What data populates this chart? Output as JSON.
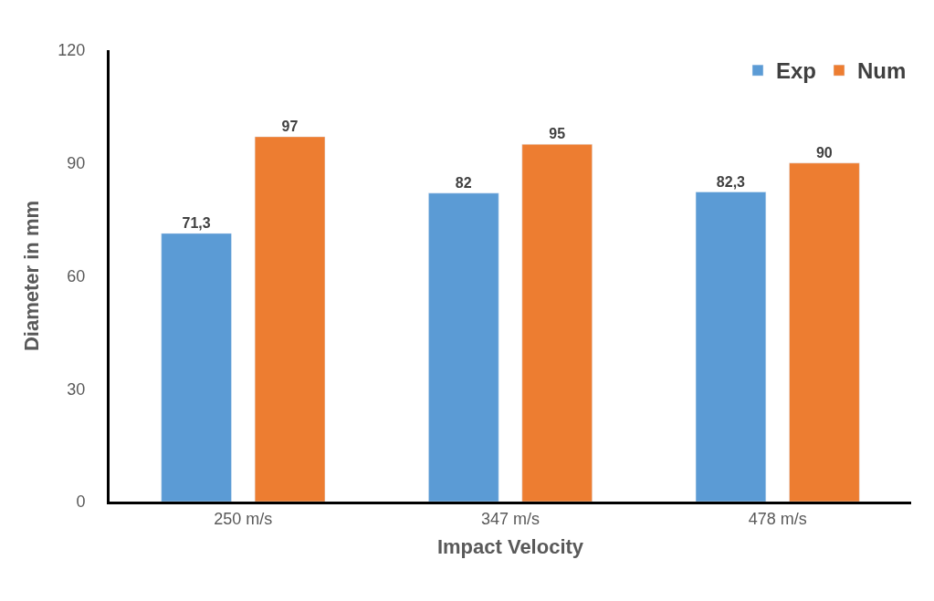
{
  "chart_data": {
    "type": "bar",
    "xlabel": "Impact Velocity",
    "ylabel": "Diameter in mm",
    "categories": [
      "250 m/s",
      "347 m/s",
      "478 m/s"
    ],
    "series": [
      {
        "name": "Exp",
        "color": "#5b9bd5",
        "values": [
          71.3,
          82,
          82.3
        ],
        "value_labels": [
          "71,3",
          "82",
          "82,3"
        ]
      },
      {
        "name": "Num",
        "color": "#ed7d31",
        "values": [
          97,
          95,
          90
        ],
        "value_labels": [
          "97",
          "95",
          "90"
        ]
      }
    ],
    "ylim": [
      0,
      120
    ],
    "yticks": [
      0,
      30,
      60,
      90,
      120
    ],
    "legend": "top right"
  }
}
